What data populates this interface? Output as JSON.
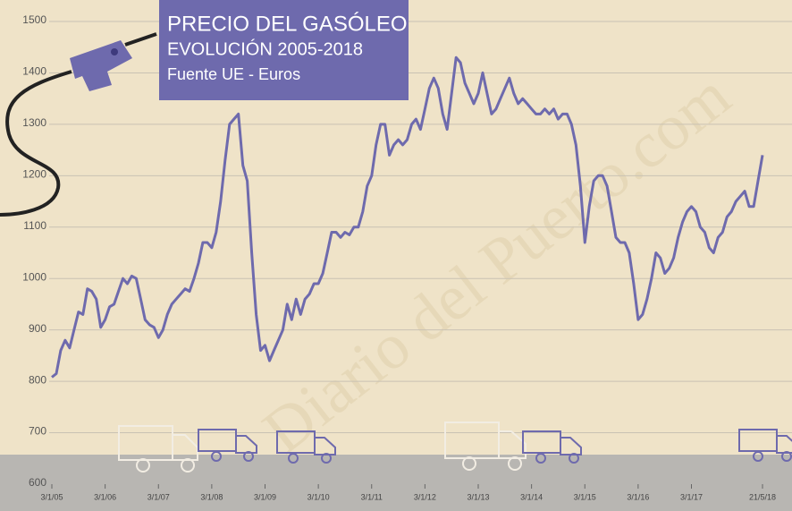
{
  "chart_data": {
    "type": "line",
    "title": "PRECIO DEL GASÓLEO",
    "subtitle": "EVOLUCIÓN 2005-2018",
    "source": "Fuente UE - Euros",
    "watermark": "Diario del Puerto.com",
    "x": [
      "2005-01",
      "2005-02",
      "2005-03",
      "2005-04",
      "2005-05",
      "2005-06",
      "2005-07",
      "2005-08",
      "2005-09",
      "2005-10",
      "2005-11",
      "2005-12",
      "2006-01",
      "2006-02",
      "2006-03",
      "2006-04",
      "2006-05",
      "2006-06",
      "2006-07",
      "2006-08",
      "2006-09",
      "2006-10",
      "2006-11",
      "2006-12",
      "2007-01",
      "2007-02",
      "2007-03",
      "2007-04",
      "2007-05",
      "2007-06",
      "2007-07",
      "2007-08",
      "2007-09",
      "2007-10",
      "2007-11",
      "2007-12",
      "2008-01",
      "2008-02",
      "2008-03",
      "2008-04",
      "2008-05",
      "2008-06",
      "2008-07",
      "2008-08",
      "2008-09",
      "2008-10",
      "2008-11",
      "2008-12",
      "2009-01",
      "2009-02",
      "2009-03",
      "2009-04",
      "2009-05",
      "2009-06",
      "2009-07",
      "2009-08",
      "2009-09",
      "2009-10",
      "2009-11",
      "2009-12",
      "2010-01",
      "2010-02",
      "2010-03",
      "2010-04",
      "2010-05",
      "2010-06",
      "2010-07",
      "2010-08",
      "2010-09",
      "2010-10",
      "2010-11",
      "2010-12",
      "2011-01",
      "2011-02",
      "2011-03",
      "2011-04",
      "2011-05",
      "2011-06",
      "2011-07",
      "2011-08",
      "2011-09",
      "2011-10",
      "2011-11",
      "2011-12",
      "2012-01",
      "2012-02",
      "2012-03",
      "2012-04",
      "2012-05",
      "2012-06",
      "2012-07",
      "2012-08",
      "2012-09",
      "2012-10",
      "2012-11",
      "2012-12",
      "2013-01",
      "2013-02",
      "2013-03",
      "2013-04",
      "2013-05",
      "2013-06",
      "2013-07",
      "2013-08",
      "2013-09",
      "2013-10",
      "2013-11",
      "2013-12",
      "2014-01",
      "2014-02",
      "2014-03",
      "2014-04",
      "2014-05",
      "2014-06",
      "2014-07",
      "2014-08",
      "2014-09",
      "2014-10",
      "2014-11",
      "2014-12",
      "2015-01",
      "2015-02",
      "2015-03",
      "2015-04",
      "2015-05",
      "2015-06",
      "2015-07",
      "2015-08",
      "2015-09",
      "2015-10",
      "2015-11",
      "2015-12",
      "2016-01",
      "2016-02",
      "2016-03",
      "2016-04",
      "2016-05",
      "2016-06",
      "2016-07",
      "2016-08",
      "2016-09",
      "2016-10",
      "2016-11",
      "2016-12",
      "2017-01",
      "2017-02",
      "2017-03",
      "2017-04",
      "2017-05",
      "2017-06",
      "2017-07",
      "2017-08",
      "2017-09",
      "2017-10",
      "2017-11",
      "2017-12",
      "2018-01",
      "2018-02",
      "2018-03",
      "2018-04",
      "2018-05"
    ],
    "series": [
      {
        "name": "Gasóleo",
        "color": "#6e6aad",
        "values": [
          808,
          815,
          860,
          880,
          865,
          900,
          935,
          930,
          980,
          975,
          960,
          905,
          920,
          945,
          950,
          975,
          1000,
          990,
          1005,
          1000,
          960,
          920,
          910,
          905,
          885,
          900,
          930,
          950,
          960,
          970,
          980,
          975,
          1000,
          1030,
          1070,
          1070,
          1060,
          1090,
          1150,
          1230,
          1300,
          1310,
          1320,
          1220,
          1190,
          1050,
          930,
          860,
          870,
          840,
          860,
          880,
          900,
          950,
          920,
          960,
          930,
          960,
          970,
          990,
          990,
          1010,
          1050,
          1090,
          1090,
          1080,
          1090,
          1085,
          1100,
          1100,
          1130,
          1180,
          1200,
          1260,
          1300,
          1300,
          1240,
          1260,
          1270,
          1260,
          1270,
          1300,
          1310,
          1290,
          1330,
          1370,
          1390,
          1370,
          1320,
          1290,
          1360,
          1430,
          1420,
          1380,
          1360,
          1340,
          1360,
          1400,
          1360,
          1320,
          1330,
          1350,
          1370,
          1390,
          1360,
          1340,
          1350,
          1340,
          1330,
          1320,
          1320,
          1330,
          1320,
          1330,
          1310,
          1320,
          1320,
          1300,
          1260,
          1180,
          1070,
          1140,
          1190,
          1200,
          1200,
          1180,
          1130,
          1080,
          1070,
          1070,
          1050,
          990,
          920,
          930,
          960,
          1000,
          1050,
          1040,
          1010,
          1020,
          1040,
          1080,
          1110,
          1130,
          1140,
          1130,
          1100,
          1090,
          1060,
          1050,
          1080,
          1090,
          1120,
          1130,
          1150,
          1160,
          1170,
          1140,
          1140,
          1190,
          1240
        ]
      }
    ],
    "ylim": [
      600,
      1500
    ],
    "yticks": [
      600,
      700,
      800,
      900,
      1000,
      1100,
      1200,
      1300,
      1400,
      1500
    ],
    "xticks": [
      {
        "value": "2005-01",
        "label": "3/1/05"
      },
      {
        "value": "2006-01",
        "label": "3/1/06"
      },
      {
        "value": "2007-01",
        "label": "3/1/07"
      },
      {
        "value": "2008-01",
        "label": "3/1/08"
      },
      {
        "value": "2009-01",
        "label": "3/1/09"
      },
      {
        "value": "2010-01",
        "label": "3/1/10"
      },
      {
        "value": "2011-01",
        "label": "3/1/11"
      },
      {
        "value": "2012-01",
        "label": "3/1/12"
      },
      {
        "value": "2013-01",
        "label": "3/1/13"
      },
      {
        "value": "2014-01",
        "label": "3/1/14"
      },
      {
        "value": "2015-01",
        "label": "3/1/15"
      },
      {
        "value": "2016-01",
        "label": "3/1/16"
      },
      {
        "value": "2017-01",
        "label": "3/1/17"
      },
      {
        "value": "2018-05",
        "label": "21/5/18"
      }
    ],
    "grid": true
  }
}
